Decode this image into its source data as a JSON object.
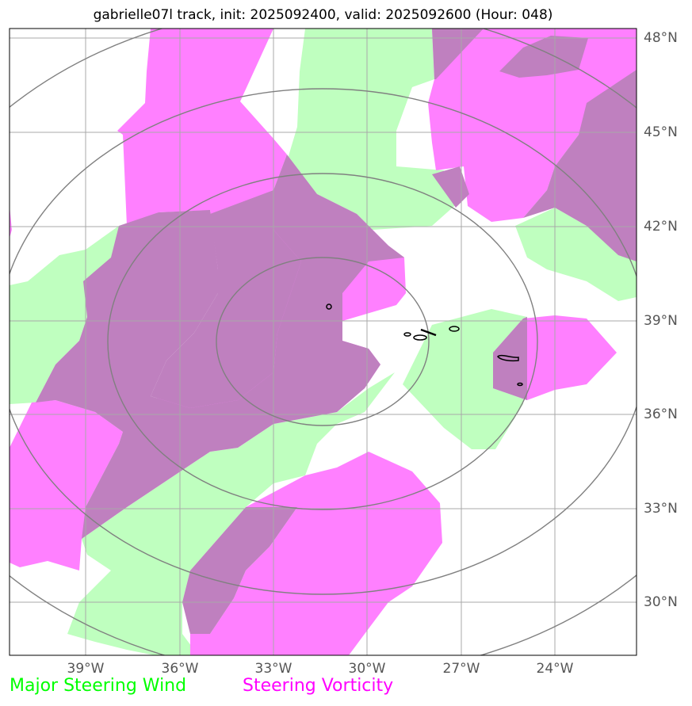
{
  "title": "gabrielle07l track, init: 2025092400, valid: 2025092600 (Hour: 048)",
  "lat_ticks": [
    "48°N",
    "45°N",
    "42°N",
    "39°N",
    "36°N",
    "33°N",
    "30°N"
  ],
  "lon_ticks": [
    "39°W",
    "36°W",
    "33°W",
    "30°W",
    "27°W",
    "24°W"
  ],
  "legend": [
    {
      "label": "Major Steering Wind",
      "color": "#00ff00"
    },
    {
      "label": "Steering Vorticity",
      "color": "#ff00ff"
    }
  ],
  "colors": {
    "wind_fill": "#bfffbf",
    "vorticity_fill": "#ff80ff",
    "overlap_fill": "#bf80bf",
    "rings": "#808080",
    "grid": "#a0a0a0"
  }
}
